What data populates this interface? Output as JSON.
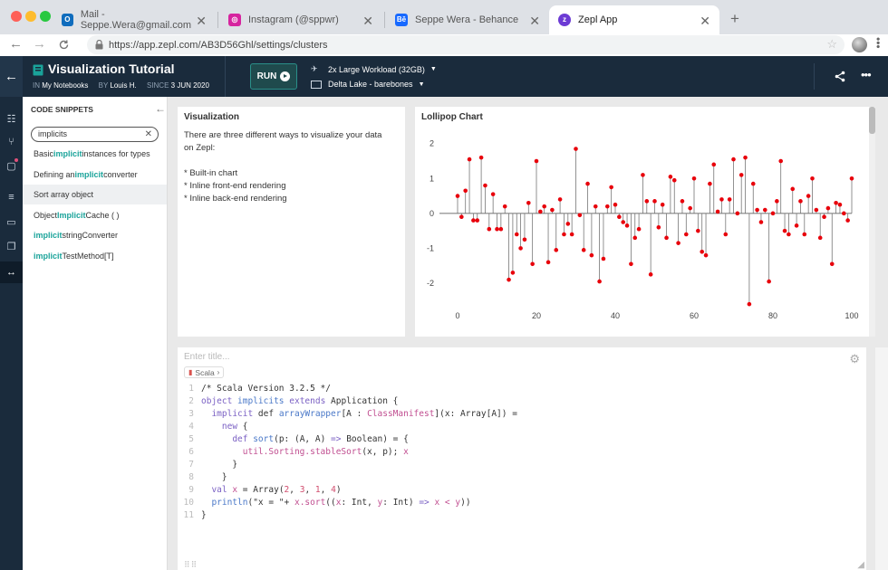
{
  "browser": {
    "tabs": [
      {
        "label": "Mail - Seppe.Wera@gmail.com",
        "icon": "outlook-icon",
        "color": "#0f6cbd"
      },
      {
        "label": "Instagram (@sppwr)",
        "icon": "instagram-icon",
        "color": "#d6249f"
      },
      {
        "label": "Seppe Wera - Behance",
        "icon": "behance-icon",
        "color": "#1769ff"
      },
      {
        "label": "Zepl App",
        "icon": "zepl-icon",
        "color": "#6c3bd4"
      }
    ],
    "url": "https://app.zepl.com/AB3D56Ghl/settings/clusters"
  },
  "notebook": {
    "title": "Visualization Tutorial",
    "in_label": "IN",
    "in_value": "My Notebooks",
    "by_label": "BY",
    "by_value": "Louis H.",
    "since_label": "SINCE",
    "since_value": "3 JUN 2020",
    "run_label": "RUN",
    "workload": "2x Large Workload (32GB)",
    "datasource": "Delta Lake - barebones"
  },
  "snippets": {
    "title": "CODE SNIPPETS",
    "search_value": "implicits",
    "items": [
      {
        "pre": "Basic ",
        "hl": "implicit",
        "post": " instances for types"
      },
      {
        "pre": "Defining an ",
        "hl": "implicit",
        "post": " converter"
      },
      {
        "pre": "Sort array object",
        "hl": "",
        "post": ""
      },
      {
        "pre": "Object ",
        "hl": "Implicit",
        "post": "Cache ( )"
      },
      {
        "pre": "",
        "hl": "implicit",
        "post": " stringConverter"
      },
      {
        "pre": "",
        "hl": "implicit",
        "post": "TestMethod[T]"
      }
    ]
  },
  "viz_panel": {
    "title": "Visualization",
    "intro": "There are three different ways to visualize your data on Zepl:",
    "bullets": [
      "* Built-in chart",
      "* Inline front-end rendering",
      "* Inline back-end rendering"
    ]
  },
  "chart_panel": {
    "title": "Lollipop Chart"
  },
  "chart_data": {
    "type": "scatter",
    "title": "Lollipop Chart",
    "xlim": [
      0,
      100
    ],
    "ylim": [
      -2.7,
      2.2
    ],
    "x_ticks": [
      0,
      20,
      40,
      60,
      80,
      100
    ],
    "y_ticks": [
      2,
      1,
      0,
      -1,
      -2
    ],
    "color": "#e8000b",
    "x": [
      0,
      1,
      2,
      3,
      4,
      5,
      6,
      7,
      8,
      9,
      10,
      11,
      12,
      13,
      14,
      15,
      16,
      17,
      18,
      19,
      20,
      21,
      22,
      23,
      24,
      25,
      26,
      27,
      28,
      29,
      30,
      31,
      32,
      33,
      34,
      35,
      36,
      37,
      38,
      39,
      40,
      41,
      42,
      43,
      44,
      45,
      46,
      47,
      48,
      49,
      50,
      51,
      52,
      53,
      54,
      55,
      56,
      57,
      58,
      59,
      60,
      61,
      62,
      63,
      64,
      65,
      66,
      67,
      68,
      69,
      70,
      71,
      72,
      73,
      74,
      75,
      76,
      77,
      78,
      79,
      80,
      81,
      82,
      83,
      84,
      85,
      86,
      87,
      88,
      89,
      90,
      91,
      92,
      93,
      94,
      95,
      96,
      97,
      98,
      99,
      100
    ],
    "y": [
      0.5,
      -0.1,
      0.65,
      1.55,
      -0.2,
      -0.2,
      1.6,
      0.8,
      -0.45,
      0.55,
      -0.45,
      -0.45,
      0.2,
      -1.9,
      -1.7,
      -0.6,
      -1.0,
      -0.75,
      0.3,
      -1.45,
      1.5,
      0.05,
      0.2,
      -1.4,
      0.1,
      -1.05,
      0.4,
      -0.6,
      -0.3,
      -0.6,
      1.85,
      -0.05,
      -1.05,
      0.85,
      -1.2,
      0.2,
      -1.95,
      -1.3,
      0.2,
      0.75,
      0.25,
      -0.1,
      -0.25,
      -0.35,
      -1.45,
      -0.7,
      -0.45,
      1.1,
      0.35,
      -1.75,
      0.35,
      -0.4,
      0.25,
      -0.7,
      1.05,
      0.95,
      -0.85,
      0.35,
      -0.6,
      0.15,
      1.0,
      -0.5,
      -1.1,
      -1.2,
      0.85,
      1.4,
      0.05,
      0.4,
      -0.6,
      0.4,
      1.55,
      0.0,
      1.1,
      1.6,
      -2.6,
      0.85,
      0.1,
      -0.25,
      0.1,
      -1.95,
      0.0,
      0.35,
      1.5,
      -0.5,
      -0.6,
      0.7,
      -0.35,
      0.35,
      -0.6,
      0.5,
      1.0,
      0.1,
      -0.7,
      -0.1,
      0.15,
      -1.45,
      0.3,
      0.25,
      0.0,
      -0.2,
      1.0
    ]
  },
  "code_cell": {
    "title_placeholder": "Enter title...",
    "language": "Scala",
    "lines": [
      [
        {
          "t": "/* Scala Version 3.2.5 */",
          "c": ""
        }
      ],
      [
        {
          "t": "object ",
          "c": "kw"
        },
        {
          "t": "implicits ",
          "c": "fn"
        },
        {
          "t": "extends ",
          "c": "kw"
        },
        {
          "t": "Application {",
          "c": ""
        }
      ],
      [
        {
          "t": "  implicit ",
          "c": "kw"
        },
        {
          "t": "def ",
          "c": ""
        },
        {
          "t": "arrayWrapper",
          "c": "fn"
        },
        {
          "t": "[A : ",
          "c": ""
        },
        {
          "t": "ClassManifest",
          "c": "ty"
        },
        {
          "t": "](x: Array[A]) =",
          "c": ""
        }
      ],
      [
        {
          "t": "    new ",
          "c": "kw"
        },
        {
          "t": "{",
          "c": ""
        }
      ],
      [
        {
          "t": "      def ",
          "c": "kw"
        },
        {
          "t": "sort",
          "c": "fn"
        },
        {
          "t": "(p: (A, A) ",
          "c": ""
        },
        {
          "t": "=> ",
          "c": "kw"
        },
        {
          "t": "Boolean) = {",
          "c": ""
        }
      ],
      [
        {
          "t": "        util.Sorting.stableSort",
          "c": "ty"
        },
        {
          "t": "(x, p); ",
          "c": ""
        },
        {
          "t": "x",
          "c": "ty"
        }
      ],
      [
        {
          "t": "      }",
          "c": ""
        }
      ],
      [
        {
          "t": "    }",
          "c": ""
        }
      ],
      [
        {
          "t": "  val ",
          "c": "kw"
        },
        {
          "t": "x ",
          "c": "ty"
        },
        {
          "t": "= Array(",
          "c": ""
        },
        {
          "t": "2",
          "c": "nm"
        },
        {
          "t": ", ",
          "c": ""
        },
        {
          "t": "3",
          "c": "nm"
        },
        {
          "t": ", ",
          "c": ""
        },
        {
          "t": "1",
          "c": "nm"
        },
        {
          "t": ", ",
          "c": ""
        },
        {
          "t": "4",
          "c": "nm"
        },
        {
          "t": ")",
          "c": ""
        }
      ],
      [
        {
          "t": "  println",
          "c": "fn"
        },
        {
          "t": "(\"x = \"+ ",
          "c": ""
        },
        {
          "t": "x.sort",
          "c": "ty"
        },
        {
          "t": "((",
          "c": ""
        },
        {
          "t": "x",
          "c": "ty"
        },
        {
          "t": ": Int, ",
          "c": ""
        },
        {
          "t": "y",
          "c": "ty"
        },
        {
          "t": ": Int) ",
          "c": ""
        },
        {
          "t": "=> ",
          "c": "kw"
        },
        {
          "t": "x < y",
          "c": "ty"
        },
        {
          "t": "))",
          "c": ""
        }
      ],
      [
        {
          "t": "}",
          "c": ""
        }
      ]
    ]
  }
}
